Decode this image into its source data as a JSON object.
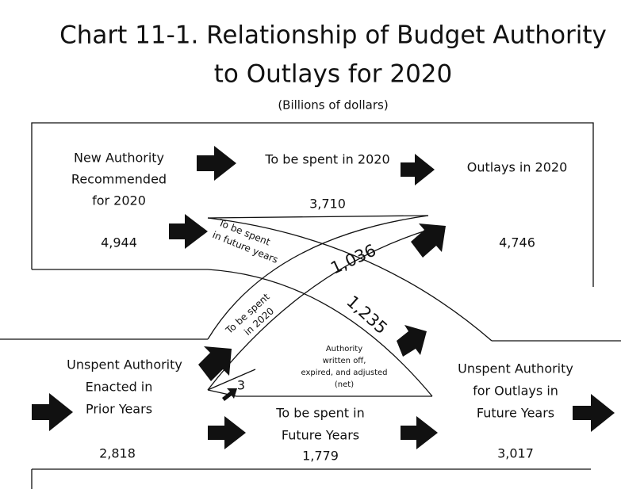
{
  "title": [
    "Chart 11-1.  Relationship of Budget Authority",
    "to Outlays for 2020"
  ],
  "subtitle": "(Billions of dollars)",
  "nodes": [
    {
      "label": [
        "New Authority",
        "Recommended",
        "for 2020"
      ],
      "value": "4,944"
    },
    {
      "label": [
        "To be spent in 2020"
      ],
      "value": "3,710"
    },
    {
      "label": [
        "Outlays in 2020"
      ],
      "value": "4,746"
    },
    {
      "label": [
        "Unspent Authority",
        "Enacted in",
        "Prior Years"
      ],
      "value": "2,818"
    },
    {
      "label": [
        "To be spent in",
        "Future Years"
      ],
      "value": "1,779"
    },
    {
      "label": [
        "Unspent Authority",
        "for Outlays in",
        "Future Years"
      ],
      "value": "3,017"
    }
  ],
  "flows": [
    {
      "label": [
        "To be spent",
        "in future years"
      ],
      "value": "1,235"
    },
    {
      "label": [
        "To be spent",
        "in 2020"
      ],
      "value": "1,036"
    },
    {
      "label": [
        "Authority",
        "written off,",
        "expired, and adjusted",
        "(net)"
      ],
      "value": "3"
    }
  ]
}
